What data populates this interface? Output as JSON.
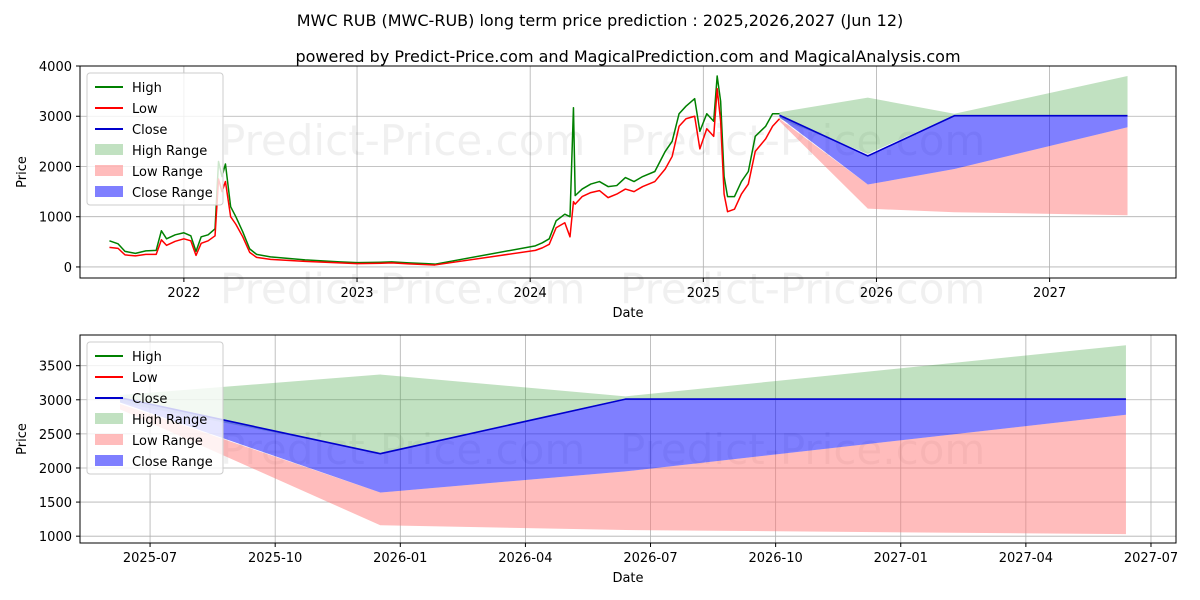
{
  "title": "MWC RUB (MWC-RUB) long term price prediction : 2025,2026,2027 (Jun 12)",
  "subtitle": "powered by Predict-Price.com and MagicalPrediction.com and MagicalAnalysis.com",
  "watermark": "Predict-Price.com",
  "colors": {
    "high": "#008000",
    "low": "#ff0000",
    "close": "#0000cc",
    "high_range": "#3fa33f",
    "low_range": "#ff7373",
    "close_range": "#0000ff"
  },
  "legend": [
    "High",
    "Low",
    "Close",
    "High Range",
    "Low Range",
    "Close Range"
  ],
  "chart_data": [
    {
      "type": "line",
      "xlabel": "Date",
      "ylabel": "Price",
      "xlim": [
        2021.4,
        2027.73
      ],
      "ylim": [
        -220,
        4000
      ],
      "x_ticks": [
        2022,
        2023,
        2024,
        2025,
        2026,
        2027
      ],
      "x_tick_labels": [
        "2022",
        "2023",
        "2024",
        "2025",
        "2026",
        "2027"
      ],
      "y_ticks": [
        0,
        1000,
        2000,
        3000,
        4000
      ],
      "series": [
        {
          "name": "High",
          "points": [
            [
              2021.57,
              520
            ],
            [
              2021.62,
              460
            ],
            [
              2021.66,
              310
            ],
            [
              2021.72,
              270
            ],
            [
              2021.78,
              320
            ],
            [
              2021.84,
              330
            ],
            [
              2021.87,
              720
            ],
            [
              2021.9,
              560
            ],
            [
              2021.95,
              640
            ],
            [
              2022.0,
              680
            ],
            [
              2022.04,
              620
            ],
            [
              2022.07,
              310
            ],
            [
              2022.1,
              600
            ],
            [
              2022.14,
              640
            ],
            [
              2022.18,
              760
            ],
            [
              2022.2,
              2100
            ],
            [
              2022.22,
              1800
            ],
            [
              2022.24,
              2050
            ],
            [
              2022.27,
              1200
            ],
            [
              2022.3,
              1000
            ],
            [
              2022.34,
              700
            ],
            [
              2022.38,
              360
            ],
            [
              2022.42,
              250
            ],
            [
              2022.5,
              200
            ],
            [
              2022.6,
              170
            ],
            [
              2022.7,
              140
            ],
            [
              2022.8,
              120
            ],
            [
              2022.9,
              100
            ],
            [
              2023.0,
              85
            ],
            [
              2023.1,
              90
            ],
            [
              2023.2,
              100
            ],
            [
              2023.3,
              80
            ],
            [
              2023.4,
              65
            ],
            [
              2023.45,
              55
            ],
            [
              2024.03,
              420
            ],
            [
              2024.07,
              480
            ],
            [
              2024.11,
              560
            ],
            [
              2024.15,
              920
            ],
            [
              2024.2,
              1050
            ],
            [
              2024.23,
              1000
            ],
            [
              2024.25,
              3170
            ],
            [
              2024.26,
              1420
            ],
            [
              2024.3,
              1550
            ],
            [
              2024.35,
              1650
            ],
            [
              2024.4,
              1700
            ],
            [
              2024.45,
              1600
            ],
            [
              2024.5,
              1620
            ],
            [
              2024.55,
              1780
            ],
            [
              2024.6,
              1700
            ],
            [
              2024.65,
              1800
            ],
            [
              2024.72,
              1900
            ],
            [
              2024.78,
              2300
            ],
            [
              2024.82,
              2500
            ],
            [
              2024.86,
              3050
            ],
            [
              2024.9,
              3200
            ],
            [
              2024.95,
              3350
            ],
            [
              2024.98,
              2700
            ],
            [
              2025.02,
              3050
            ],
            [
              2025.06,
              2900
            ],
            [
              2025.08,
              3800
            ],
            [
              2025.1,
              3300
            ],
            [
              2025.12,
              1800
            ],
            [
              2025.14,
              1400
            ],
            [
              2025.18,
              1400
            ],
            [
              2025.22,
              1700
            ],
            [
              2025.26,
              1900
            ],
            [
              2025.3,
              2600
            ],
            [
              2025.36,
              2800
            ],
            [
              2025.4,
              3050
            ],
            [
              2025.44,
              3050
            ]
          ]
        },
        {
          "name": "Low",
          "points": [
            [
              2021.57,
              390
            ],
            [
              2021.62,
              370
            ],
            [
              2021.66,
              240
            ],
            [
              2021.72,
              220
            ],
            [
              2021.78,
              250
            ],
            [
              2021.84,
              250
            ],
            [
              2021.87,
              540
            ],
            [
              2021.9,
              430
            ],
            [
              2021.95,
              510
            ],
            [
              2022.0,
              560
            ],
            [
              2022.04,
              520
            ],
            [
              2022.07,
              230
            ],
            [
              2022.1,
              470
            ],
            [
              2022.14,
              520
            ],
            [
              2022.18,
              620
            ],
            [
              2022.2,
              1750
            ],
            [
              2022.22,
              1500
            ],
            [
              2022.24,
              1700
            ],
            [
              2022.27,
              1000
            ],
            [
              2022.3,
              850
            ],
            [
              2022.34,
              600
            ],
            [
              2022.38,
              290
            ],
            [
              2022.42,
              190
            ],
            [
              2022.5,
              150
            ],
            [
              2022.6,
              130
            ],
            [
              2022.7,
              110
            ],
            [
              2022.8,
              95
            ],
            [
              2022.9,
              80
            ],
            [
              2023.0,
              65
            ],
            [
              2023.1,
              70
            ],
            [
              2023.2,
              80
            ],
            [
              2023.3,
              60
            ],
            [
              2023.4,
              45
            ],
            [
              2023.45,
              40
            ],
            [
              2024.03,
              330
            ],
            [
              2024.07,
              380
            ],
            [
              2024.11,
              450
            ],
            [
              2024.15,
              780
            ],
            [
              2024.2,
              880
            ],
            [
              2024.23,
              600
            ],
            [
              2024.25,
              1300
            ],
            [
              2024.26,
              1250
            ],
            [
              2024.3,
              1400
            ],
            [
              2024.35,
              1480
            ],
            [
              2024.4,
              1520
            ],
            [
              2024.45,
              1380
            ],
            [
              2024.5,
              1450
            ],
            [
              2024.55,
              1550
            ],
            [
              2024.6,
              1500
            ],
            [
              2024.65,
              1600
            ],
            [
              2024.72,
              1700
            ],
            [
              2024.78,
              1950
            ],
            [
              2024.82,
              2200
            ],
            [
              2024.86,
              2800
            ],
            [
              2024.9,
              2950
            ],
            [
              2024.95,
              3000
            ],
            [
              2024.98,
              2350
            ],
            [
              2025.02,
              2750
            ],
            [
              2025.06,
              2600
            ],
            [
              2025.08,
              3550
            ],
            [
              2025.1,
              2900
            ],
            [
              2025.12,
              1450
            ],
            [
              2025.14,
              1100
            ],
            [
              2025.18,
              1150
            ],
            [
              2025.22,
              1450
            ],
            [
              2025.26,
              1650
            ],
            [
              2025.3,
              2300
            ],
            [
              2025.36,
              2550
            ],
            [
              2025.4,
              2800
            ],
            [
              2025.44,
              2950
            ]
          ]
        },
        {
          "name": "Close",
          "points": [
            [
              2025.44,
              3020
            ],
            [
              2025.95,
              2210
            ],
            [
              2026.45,
              3010
            ],
            [
              2027.45,
              3010
            ]
          ]
        }
      ],
      "ranges": [
        {
          "name": "High Range",
          "upper": [
            [
              2025.44,
              3080
            ],
            [
              2025.95,
              3370
            ],
            [
              2026.45,
              3050
            ],
            [
              2027.45,
              3800
            ]
          ],
          "lower": [
            [
              2025.44,
              2950
            ],
            [
              2025.95,
              2250
            ],
            [
              2026.45,
              3020
            ],
            [
              2027.45,
              3020
            ]
          ]
        },
        {
          "name": "Low Range",
          "upper": [
            [
              2025.44,
              2950
            ],
            [
              2025.95,
              1640
            ],
            [
              2026.45,
              1950
            ],
            [
              2027.45,
              2780
            ]
          ],
          "lower": [
            [
              2025.44,
              2900
            ],
            [
              2025.95,
              1160
            ],
            [
              2026.45,
              1090
            ],
            [
              2027.45,
              1030
            ]
          ]
        },
        {
          "name": "Close Range",
          "upper": [
            [
              2025.44,
              3020
            ],
            [
              2025.95,
              2210
            ],
            [
              2026.45,
              3010
            ],
            [
              2027.45,
              3010
            ]
          ],
          "lower": [
            [
              2025.44,
              2980
            ],
            [
              2025.95,
              1640
            ],
            [
              2026.45,
              1950
            ],
            [
              2027.45,
              2780
            ]
          ]
        }
      ]
    },
    {
      "type": "line",
      "xlabel": "Date",
      "ylabel": "Price",
      "xlim": [
        2025.36,
        2027.55
      ],
      "ylim": [
        900,
        3950
      ],
      "x_ticks": [
        2025.5,
        2025.75,
        2026.0,
        2026.25,
        2026.5,
        2026.75,
        2027.0,
        2027.25,
        2027.5
      ],
      "x_tick_labels": [
        "2025-07",
        "2025-10",
        "2026-01",
        "2026-04",
        "2026-07",
        "2026-10",
        "2027-01",
        "2027-04",
        "2027-07"
      ],
      "y_ticks": [
        1000,
        1500,
        2000,
        2500,
        3000,
        3500
      ],
      "series": [
        {
          "name": "Close",
          "points": [
            [
              2025.44,
              3030
            ],
            [
              2025.96,
              2210
            ],
            [
              2026.45,
              3010
            ],
            [
              2027.45,
              3010
            ]
          ]
        }
      ],
      "ranges": [
        {
          "name": "High Range",
          "upper": [
            [
              2025.44,
              3070
            ],
            [
              2025.96,
              3370
            ],
            [
              2026.45,
              3050
            ],
            [
              2027.45,
              3800
            ]
          ],
          "lower": [
            [
              2025.44,
              2960
            ],
            [
              2025.96,
              2220
            ],
            [
              2026.45,
              3020
            ],
            [
              2027.45,
              3020
            ]
          ]
        },
        {
          "name": "Low Range",
          "upper": [
            [
              2025.44,
              2940
            ],
            [
              2025.96,
              1640
            ],
            [
              2026.45,
              1950
            ],
            [
              2027.45,
              2780
            ]
          ],
          "lower": [
            [
              2025.44,
              2860
            ],
            [
              2025.96,
              1160
            ],
            [
              2026.45,
              1090
            ],
            [
              2027.45,
              1030
            ]
          ]
        },
        {
          "name": "Close Range",
          "upper": [
            [
              2025.44,
              3030
            ],
            [
              2025.96,
              2210
            ],
            [
              2026.45,
              3010
            ],
            [
              2027.45,
              3010
            ]
          ],
          "lower": [
            [
              2025.44,
              2960
            ],
            [
              2025.96,
              1640
            ],
            [
              2026.45,
              1950
            ],
            [
              2027.45,
              2780
            ]
          ]
        }
      ]
    }
  ]
}
